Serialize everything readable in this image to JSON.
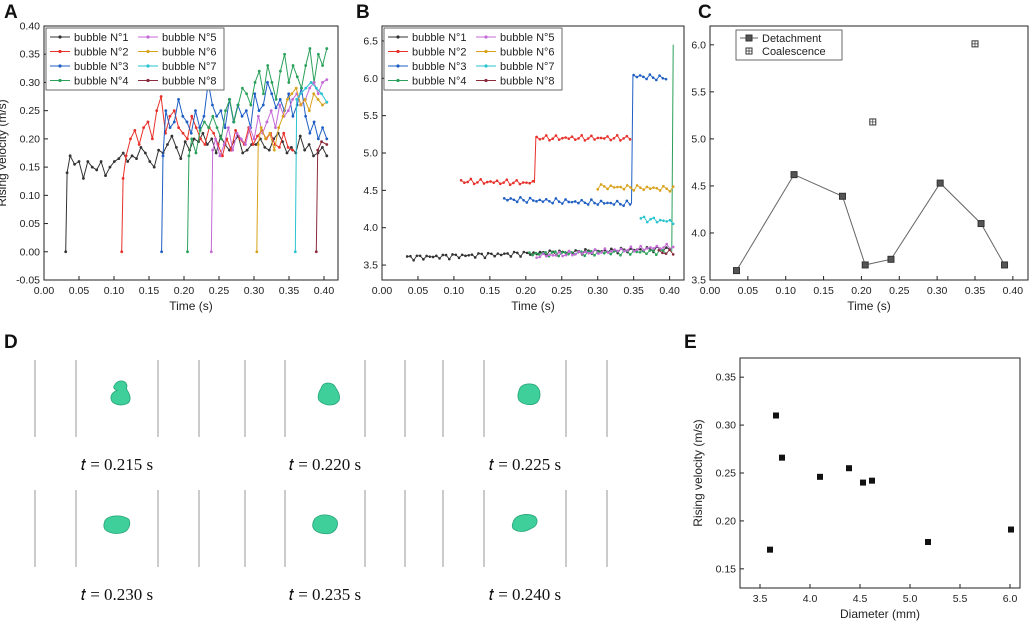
{
  "chart_data": [
    {
      "panel": "A",
      "type": "line",
      "xlabel": "Time (s)",
      "ylabel": "Rising velocity (m/s)",
      "xlim": [
        0.0,
        0.42
      ],
      "ylim": [
        -0.05,
        0.4
      ],
      "xticks": [
        "0.00",
        "0.05",
        "0.10",
        "0.15",
        "0.20",
        "0.25",
        "0.30",
        "0.35",
        "0.40"
      ],
      "yticks": [
        "-0.05",
        "0.00",
        "0.05",
        "0.10",
        "0.15",
        "0.20",
        "0.25",
        "0.30",
        "0.35",
        "0.40"
      ],
      "series": [
        {
          "name": "bubble N°1",
          "color": "#333333",
          "start": 0.031,
          "end": 0.404,
          "initial": 0.0,
          "values": [
            0.14,
            0.17,
            0.155,
            0.16,
            0.13,
            0.16,
            0.15,
            0.145,
            0.16,
            0.135,
            0.15,
            0.16,
            0.165,
            0.175,
            0.16,
            0.17,
            0.165,
            0.185,
            0.175,
            0.16,
            0.15,
            0.18,
            0.175,
            0.19,
            0.205,
            0.185,
            0.165,
            0.195,
            0.18,
            0.2,
            0.195,
            0.21,
            0.19,
            0.2,
            0.175,
            0.205,
            0.19,
            0.18,
            0.195,
            0.205,
            0.175,
            0.18,
            0.19,
            0.19,
            0.2,
            0.185,
            0.18,
            0.2,
            0.21,
            0.195,
            0.175,
            0.185,
            0.175,
            0.205,
            0.18,
            0.19,
            0.17,
            0.175,
            0.185,
            0.17
          ]
        },
        {
          "name": "bubble N°2",
          "color": "#e8302a",
          "start": 0.111,
          "end": 0.355,
          "initial": 0.0,
          "values": [
            0.13,
            0.17,
            0.2,
            0.215,
            0.19,
            0.22,
            0.23,
            0.2,
            0.25,
            0.275,
            0.21,
            0.24,
            0.25,
            0.22,
            0.21,
            0.2,
            0.24,
            0.22,
            0.2,
            0.19,
            0.22,
            0.21,
            0.19,
            0.17,
            0.2,
            0.18,
            0.215,
            0.2,
            0.19,
            0.22,
            0.19,
            0.205,
            0.215,
            0.2,
            0.21,
            0.19,
            0.185,
            0.21,
            0.185,
            0.18
          ]
        },
        {
          "name": "bubble N°3",
          "color": "#1f5fc4",
          "start": 0.168,
          "end": 0.404,
          "initial": 0.0,
          "values": [
            0.17,
            0.25,
            0.22,
            0.23,
            0.27,
            0.24,
            0.23,
            0.21,
            0.25,
            0.22,
            0.24,
            0.3,
            0.26,
            0.24,
            0.25,
            0.22,
            0.27,
            0.23,
            0.26,
            0.24,
            0.25,
            0.22,
            0.28,
            0.25,
            0.26,
            0.3,
            0.28,
            0.255,
            0.27,
            0.25,
            0.28,
            0.24,
            0.26,
            0.29,
            0.24,
            0.21,
            0.23,
            0.2,
            0.22,
            0.2
          ]
        },
        {
          "name": "bubble N°4",
          "color": "#2aa05a",
          "start": 0.205,
          "end": 0.404,
          "initial": 0.0,
          "values": [
            0.17,
            0.2,
            0.175,
            0.215,
            0.23,
            0.22,
            0.24,
            0.22,
            0.2,
            0.25,
            0.27,
            0.23,
            0.26,
            0.29,
            0.28,
            0.26,
            0.3,
            0.32,
            0.28,
            0.33,
            0.3,
            0.27,
            0.32,
            0.35,
            0.3,
            0.33,
            0.31,
            0.29,
            0.33,
            0.36,
            0.3,
            0.35,
            0.33,
            0.36
          ]
        },
        {
          "name": "bubble N°5",
          "color": "#c46ad6",
          "start": 0.239,
          "end": 0.404,
          "initial": 0.0,
          "values": [
            0.18,
            0.2,
            0.17,
            0.19,
            0.22,
            0.18,
            0.21,
            0.2,
            0.19,
            0.22,
            0.2,
            0.24,
            0.21,
            0.23,
            0.25,
            0.22,
            0.26,
            0.24,
            0.25,
            0.27,
            0.28,
            0.26,
            0.27,
            0.29,
            0.3,
            0.28,
            0.3,
            0.305
          ]
        },
        {
          "name": "bubble N°6",
          "color": "#d9a21b",
          "start": 0.304,
          "end": 0.404,
          "initial": 0.0,
          "values": [
            0.19,
            0.22,
            0.2,
            0.21,
            0.18,
            0.22,
            0.24,
            0.27,
            0.28,
            0.29,
            0.26,
            0.27,
            0.25,
            0.28,
            0.27,
            0.26,
            0.265
          ]
        },
        {
          "name": "bubble N°7",
          "color": "#2ac3d0",
          "start": 0.359,
          "end": 0.404,
          "initial": 0.0,
          "values": [
            0.27,
            0.28,
            0.29,
            0.3,
            0.29,
            0.28,
            0.265
          ]
        },
        {
          "name": "bubble N°8",
          "color": "#8b2a3a",
          "start": 0.389,
          "end": 0.404,
          "initial": 0.0,
          "values": [
            0.18,
            0.195,
            0.19
          ]
        }
      ]
    },
    {
      "panel": "B",
      "type": "line",
      "xlabel": "Time (s)",
      "ylabel": "",
      "xlim": [
        0.0,
        0.42
      ],
      "ylim": [
        3.3,
        6.7
      ],
      "xticks": [
        "0.00",
        "0.05",
        "0.10",
        "0.15",
        "0.20",
        "0.25",
        "0.30",
        "0.35",
        "0.40"
      ],
      "yticks": [
        "3.5",
        "4.0",
        "4.5",
        "5.0",
        "5.5",
        "6.0",
        "6.5"
      ],
      "series": [
        {
          "name": "bubble N°1",
          "color": "#333333",
          "segments": [
            [
              0.035,
              0.4,
              3.6,
              3.72
            ]
          ],
          "jumps": []
        },
        {
          "name": "bubble N°2",
          "color": "#e8302a",
          "segments": [
            [
              0.11,
              0.21,
              4.62,
              4.6
            ],
            [
              0.215,
              0.345,
              5.2,
              5.2
            ]
          ],
          "jumps": [
            [
              0.212,
              4.6,
              5.22
            ]
          ]
        },
        {
          "name": "bubble N°3",
          "color": "#1f5fc4",
          "segments": [
            [
              0.17,
              0.345,
              4.38,
              4.32
            ],
            [
              0.35,
              0.395,
              6.03,
              6.0
            ]
          ],
          "jumps": [
            [
              0.347,
              4.32,
              6.05
            ]
          ]
        },
        {
          "name": "bubble N°4",
          "color": "#2aa05a",
          "segments": [
            [
              0.205,
              0.395,
              3.65,
              3.68
            ]
          ],
          "jumps": [
            [
              0.403,
              3.68,
              6.45
            ]
          ]
        },
        {
          "name": "bubble N°5",
          "color": "#c46ad6",
          "segments": [
            [
              0.215,
              0.405,
              3.62,
              3.75
            ]
          ],
          "jumps": []
        },
        {
          "name": "bubble N°6",
          "color": "#d9a21b",
          "segments": [
            [
              0.3,
              0.405,
              4.55,
              4.52
            ]
          ],
          "jumps": []
        },
        {
          "name": "bubble N°7",
          "color": "#2ac3d0",
          "segments": [
            [
              0.36,
              0.405,
              4.12,
              4.08
            ]
          ],
          "jumps": []
        },
        {
          "name": "bubble N°8",
          "color": "#8b2a3a",
          "segments": [
            [
              0.385,
              0.405,
              3.68,
              3.66
            ]
          ],
          "jumps": []
        }
      ]
    },
    {
      "panel": "C",
      "type": "line",
      "xlabel": "Time (s)",
      "ylabel": "",
      "xlim": [
        0.0,
        0.42
      ],
      "ylim": [
        3.5,
        6.2
      ],
      "xticks": [
        "0.00",
        "0.05",
        "0.10",
        "0.15",
        "0.20",
        "0.25",
        "0.30",
        "0.35",
        "0.40"
      ],
      "yticks": [
        "3.5",
        "4.0",
        "4.5",
        "5.0",
        "5.5",
        "6.0"
      ],
      "series": [
        {
          "name": "Detachment",
          "marker": "filled-square",
          "x": [
            0.035,
            0.111,
            0.175,
            0.205,
            0.239,
            0.304,
            0.358,
            0.389
          ],
          "y": [
            3.6,
            4.62,
            4.39,
            3.66,
            3.72,
            4.53,
            4.1,
            3.66
          ]
        },
        {
          "name": "Coalescence",
          "marker": "open-square",
          "x": [
            0.215,
            0.35
          ],
          "y": [
            5.18,
            6.01
          ]
        }
      ]
    },
    {
      "panel": "E",
      "type": "scatter",
      "xlabel": "Diameter (mm)",
      "ylabel": "Rising velocity (m/s)",
      "xlim": [
        3.3,
        6.1
      ],
      "ylim": [
        0.13,
        0.37
      ],
      "xticks": [
        "3.5",
        "4.0",
        "4.5",
        "5.0",
        "5.5",
        "6.0"
      ],
      "yticks": [
        "0.15",
        "0.20",
        "0.25",
        "0.30",
        "0.35"
      ],
      "x": [
        3.6,
        3.66,
        3.72,
        4.1,
        4.39,
        4.53,
        4.62,
        5.18,
        6.01
      ],
      "y": [
        0.17,
        0.31,
        0.266,
        0.246,
        0.255,
        0.24,
        0.242,
        0.178,
        0.191
      ]
    }
  ],
  "panel_labels": {
    "A": "A",
    "B": "B",
    "C": "C",
    "D": "D",
    "E": "E"
  },
  "snapshots": {
    "times": [
      "𝑡 = 0.215 s",
      "𝑡 = 0.220 s",
      "𝑡 = 0.225 s",
      "𝑡 = 0.230 s",
      "𝑡 = 0.235 s",
      "𝑡 = 0.240 s"
    ],
    "bubble_color": "#3ecf9a"
  }
}
